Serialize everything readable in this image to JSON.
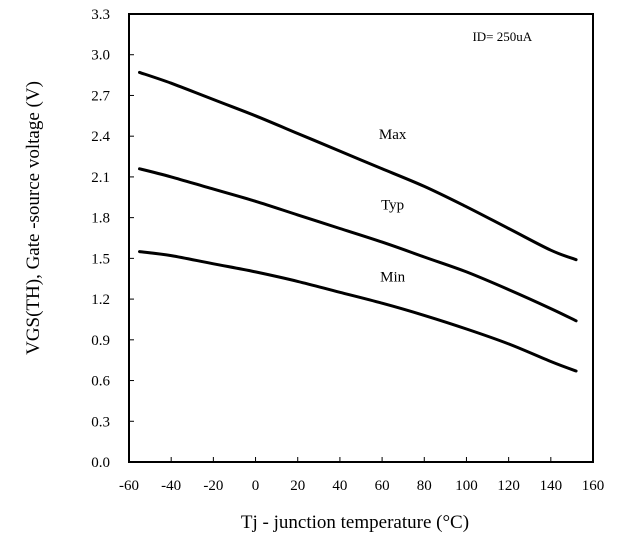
{
  "chart_data": {
    "type": "line",
    "title": "",
    "xlabel": "Tj  -  junction  temperature (°C)",
    "ylabel": "VGS(TH), Gate -source voltage (V)",
    "xlim": [
      -60,
      160
    ],
    "ylim": [
      0.0,
      3.3
    ],
    "x_ticks": [
      -60,
      -40,
      -20,
      0,
      20,
      40,
      60,
      80,
      100,
      120,
      140,
      160
    ],
    "x_tick_labels": [
      "-60",
      "-40",
      "-20",
      "0",
      "20",
      "40",
      "60",
      "80",
      "100",
      "120",
      "140",
      "160"
    ],
    "y_ticks": [
      0.0,
      0.3,
      0.6,
      0.9,
      1.2,
      1.5,
      1.8,
      2.1,
      2.4,
      2.7,
      3.0,
      3.3
    ],
    "y_tick_labels": [
      "0.0",
      "0.3",
      "0.6",
      "0.9",
      "1.2",
      "1.5",
      "1.8",
      "2.1",
      "2.4",
      "2.7",
      "3.0",
      "3.3"
    ],
    "grid": false,
    "legend": "none",
    "annotations": [
      {
        "text": "ID= 250uA",
        "x": 117,
        "y": 3.1
      }
    ],
    "series": [
      {
        "name": "Max",
        "label_at": {
          "x": 65,
          "y": 2.38
        },
        "x": [
          -55,
          -40,
          -20,
          0,
          20,
          40,
          60,
          80,
          100,
          120,
          140,
          152
        ],
        "y": [
          2.87,
          2.79,
          2.67,
          2.55,
          2.42,
          2.29,
          2.16,
          2.03,
          1.88,
          1.72,
          1.56,
          1.49
        ]
      },
      {
        "name": "Typ",
        "label_at": {
          "x": 65,
          "y": 1.86
        },
        "x": [
          -55,
          -40,
          -20,
          0,
          20,
          40,
          60,
          80,
          100,
          120,
          140,
          152
        ],
        "y": [
          2.16,
          2.1,
          2.01,
          1.92,
          1.82,
          1.72,
          1.62,
          1.51,
          1.4,
          1.27,
          1.13,
          1.04
        ]
      },
      {
        "name": "Min",
        "label_at": {
          "x": 65,
          "y": 1.33
        },
        "x": [
          -55,
          -40,
          -20,
          0,
          20,
          40,
          60,
          80,
          100,
          120,
          140,
          152
        ],
        "y": [
          1.55,
          1.52,
          1.46,
          1.4,
          1.33,
          1.25,
          1.17,
          1.08,
          0.98,
          0.87,
          0.74,
          0.67
        ]
      }
    ],
    "colors": {
      "line": "#000000",
      "frame": "#000000",
      "background": "#ffffff"
    }
  }
}
